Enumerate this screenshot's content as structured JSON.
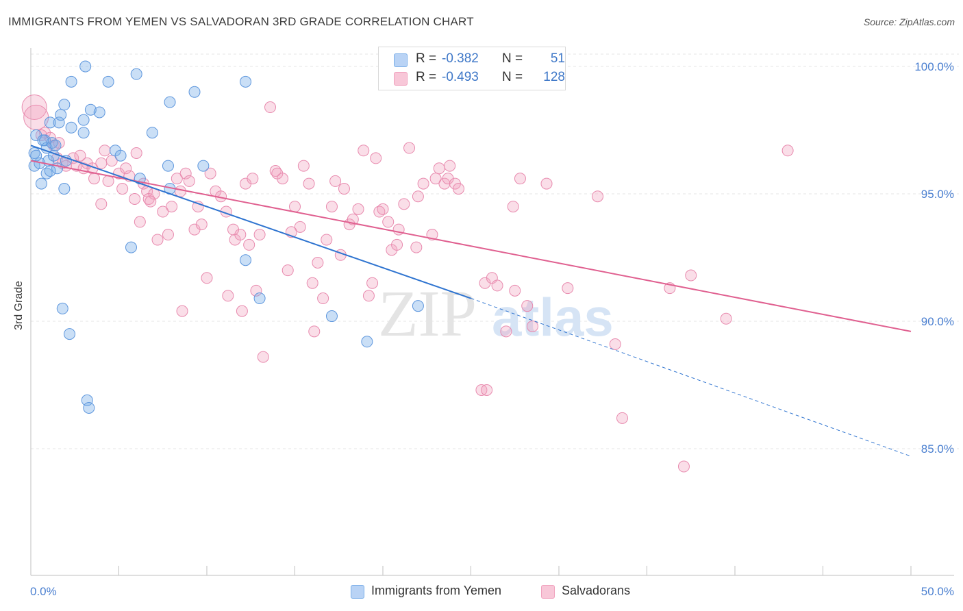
{
  "title": "IMMIGRANTS FROM YEMEN VS SALVADORAN 3RD GRADE CORRELATION CHART",
  "source": "Source: ZipAtlas.com",
  "watermark": {
    "zip": "ZIP",
    "atlas": "atlas"
  },
  "legend": {
    "series1": {
      "r_label": "R = ",
      "r_value": "-0.382",
      "n_label": "N = ",
      "n_value": "51"
    },
    "series2": {
      "r_label": "R = ",
      "r_value": "-0.493",
      "n_label": "N = ",
      "n_value": "128"
    }
  },
  "chart_data": {
    "type": "scatter",
    "title": "IMMIGRANTS FROM YEMEN VS SALVADORAN 3RD GRADE CORRELATION CHART",
    "xlabel": "",
    "ylabel": "3rd Grade",
    "xlim": [
      0,
      50
    ],
    "ylim": [
      80,
      100.5
    ],
    "x_tick_labels": [
      "0.0%",
      "50.0%"
    ],
    "y_ticks": [
      85,
      90,
      95,
      100
    ],
    "y_tick_labels": [
      "85.0%",
      "90.0%",
      "95.0%",
      "100.0%"
    ],
    "grid": true,
    "legend_position": "top-center",
    "colors": {
      "blue": "#7aaee8",
      "blue_line": "#2f74d0",
      "pink": "#f0a0bd",
      "pink_line": "#e06090",
      "tick": "#4a7fd0"
    },
    "series": [
      {
        "name": "Immigrants from Yemen",
        "color": "#7aaee8",
        "trend": {
          "x0": 0,
          "y0": 96.9,
          "x1": 25,
          "y1": 90.9,
          "dashed_to_x": 50,
          "dashed_to_y": 84.7
        },
        "points": [
          [
            0.3,
            97.3
          ],
          [
            0.2,
            96.6
          ],
          [
            0.2,
            96.1
          ],
          [
            0.5,
            96.2
          ],
          [
            0.6,
            95.4
          ],
          [
            0.8,
            97.1
          ],
          [
            0.9,
            96.8
          ],
          [
            1.0,
            96.3
          ],
          [
            0.9,
            95.8
          ],
          [
            1.1,
            95.9
          ],
          [
            1.2,
            97.0
          ],
          [
            1.1,
            97.8
          ],
          [
            1.3,
            96.5
          ],
          [
            1.4,
            96.9
          ],
          [
            1.6,
            97.8
          ],
          [
            1.7,
            98.1
          ],
          [
            1.9,
            98.5
          ],
          [
            1.9,
            95.2
          ],
          [
            2.3,
            97.6
          ],
          [
            2.3,
            99.4
          ],
          [
            3.0,
            97.9
          ],
          [
            3.0,
            97.4
          ],
          [
            3.1,
            100.0
          ],
          [
            3.4,
            98.3
          ],
          [
            3.9,
            98.2
          ],
          [
            4.4,
            99.4
          ],
          [
            4.8,
            96.7
          ],
          [
            5.1,
            96.5
          ],
          [
            5.7,
            92.9
          ],
          [
            6.0,
            99.7
          ],
          [
            6.2,
            95.6
          ],
          [
            6.9,
            97.4
          ],
          [
            7.8,
            96.1
          ],
          [
            7.9,
            98.6
          ],
          [
            7.9,
            95.2
          ],
          [
            9.3,
            99.0
          ],
          [
            9.8,
            96.1
          ],
          [
            12.2,
            99.4
          ],
          [
            12.2,
            92.4
          ],
          [
            13.0,
            90.9
          ],
          [
            17.1,
            90.2
          ],
          [
            19.1,
            89.2
          ],
          [
            22.0,
            90.6
          ],
          [
            1.8,
            90.5
          ],
          [
            2.2,
            89.5
          ],
          [
            3.2,
            86.9
          ],
          [
            3.3,
            86.6
          ],
          [
            0.3,
            96.5
          ],
          [
            0.7,
            97.1
          ],
          [
            1.5,
            96.0
          ],
          [
            2.0,
            96.3
          ]
        ]
      },
      {
        "name": "Salvadorans",
        "color": "#f0a0bd",
        "trend": {
          "x0": 0,
          "y0": 96.3,
          "x1": 50,
          "y1": 89.6
        },
        "points": [
          [
            0.2,
            98.4
          ],
          [
            0.3,
            98.0
          ],
          [
            0.8,
            97.4
          ],
          [
            1.1,
            97.2
          ],
          [
            1.3,
            96.9
          ],
          [
            1.5,
            96.4
          ],
          [
            1.8,
            96.2
          ],
          [
            2.0,
            96.1
          ],
          [
            2.4,
            96.4
          ],
          [
            2.6,
            96.1
          ],
          [
            3.0,
            96.0
          ],
          [
            3.2,
            96.2
          ],
          [
            3.5,
            96.0
          ],
          [
            3.6,
            95.6
          ],
          [
            4.0,
            96.2
          ],
          [
            4.0,
            94.6
          ],
          [
            4.2,
            96.7
          ],
          [
            4.4,
            95.5
          ],
          [
            4.6,
            96.3
          ],
          [
            5.0,
            95.8
          ],
          [
            5.2,
            95.2
          ],
          [
            5.6,
            95.7
          ],
          [
            5.9,
            94.8
          ],
          [
            6.0,
            96.6
          ],
          [
            6.2,
            93.9
          ],
          [
            6.4,
            95.4
          ],
          [
            6.6,
            95.1
          ],
          [
            6.7,
            94.8
          ],
          [
            7.0,
            95.0
          ],
          [
            7.2,
            93.2
          ],
          [
            7.5,
            94.3
          ],
          [
            7.8,
            93.4
          ],
          [
            8.0,
            94.5
          ],
          [
            8.3,
            95.6
          ],
          [
            8.5,
            95.1
          ],
          [
            8.6,
            90.4
          ],
          [
            8.8,
            95.8
          ],
          [
            9.3,
            93.6
          ],
          [
            9.5,
            94.5
          ],
          [
            9.7,
            93.8
          ],
          [
            10.0,
            91.7
          ],
          [
            10.2,
            95.8
          ],
          [
            10.5,
            95.1
          ],
          [
            10.8,
            94.9
          ],
          [
            11.1,
            94.3
          ],
          [
            11.2,
            91.0
          ],
          [
            11.6,
            93.2
          ],
          [
            11.9,
            93.4
          ],
          [
            12.0,
            90.4
          ],
          [
            12.2,
            95.4
          ],
          [
            12.4,
            93.0
          ],
          [
            12.6,
            95.6
          ],
          [
            12.8,
            91.2
          ],
          [
            13.0,
            93.4
          ],
          [
            13.2,
            88.6
          ],
          [
            13.6,
            98.4
          ],
          [
            13.9,
            95.9
          ],
          [
            14.0,
            95.8
          ],
          [
            14.3,
            95.6
          ],
          [
            14.6,
            92.0
          ],
          [
            15.0,
            94.5
          ],
          [
            15.3,
            93.7
          ],
          [
            15.5,
            96.1
          ],
          [
            15.8,
            95.4
          ],
          [
            16.0,
            91.5
          ],
          [
            16.1,
            89.6
          ],
          [
            16.3,
            92.3
          ],
          [
            16.6,
            90.9
          ],
          [
            16.8,
            93.2
          ],
          [
            17.1,
            94.5
          ],
          [
            17.3,
            95.5
          ],
          [
            17.8,
            95.2
          ],
          [
            18.1,
            93.8
          ],
          [
            18.3,
            94.0
          ],
          [
            18.6,
            94.4
          ],
          [
            18.9,
            96.7
          ],
          [
            19.2,
            91.0
          ],
          [
            19.4,
            91.5
          ],
          [
            19.6,
            96.4
          ],
          [
            19.8,
            94.3
          ],
          [
            20.0,
            94.4
          ],
          [
            20.3,
            93.9
          ],
          [
            20.5,
            92.8
          ],
          [
            20.8,
            93.0
          ],
          [
            21.2,
            94.6
          ],
          [
            21.5,
            96.8
          ],
          [
            21.9,
            92.9
          ],
          [
            22.0,
            94.9
          ],
          [
            22.3,
            95.4
          ],
          [
            22.8,
            93.4
          ],
          [
            23.0,
            95.6
          ],
          [
            23.2,
            96.0
          ],
          [
            23.5,
            95.4
          ],
          [
            23.7,
            95.6
          ],
          [
            23.8,
            96.1
          ],
          [
            24.1,
            95.4
          ],
          [
            24.3,
            95.2
          ],
          [
            25.6,
            87.3
          ],
          [
            25.8,
            91.5
          ],
          [
            25.9,
            87.3
          ],
          [
            26.2,
            91.7
          ],
          [
            26.5,
            91.4
          ],
          [
            27.0,
            89.6
          ],
          [
            27.4,
            94.5
          ],
          [
            27.5,
            91.2
          ],
          [
            27.8,
            95.6
          ],
          [
            28.2,
            90.6
          ],
          [
            28.5,
            89.8
          ],
          [
            29.3,
            95.4
          ],
          [
            30.5,
            91.3
          ],
          [
            32.2,
            94.9
          ],
          [
            33.2,
            89.1
          ],
          [
            33.6,
            86.2
          ],
          [
            36.3,
            91.3
          ],
          [
            37.1,
            84.3
          ],
          [
            37.5,
            91.8
          ],
          [
            39.5,
            90.1
          ],
          [
            43.0,
            96.7
          ],
          [
            0.6,
            97.3
          ],
          [
            1.6,
            97.0
          ],
          [
            2.8,
            96.5
          ],
          [
            5.4,
            96.0
          ],
          [
            6.8,
            94.7
          ],
          [
            9.0,
            95.5
          ],
          [
            11.5,
            93.6
          ],
          [
            14.8,
            93.5
          ],
          [
            17.6,
            92.6
          ],
          [
            20.9,
            93.6
          ]
        ]
      }
    ]
  },
  "bottom_legend": {
    "series1": "Immigrants from Yemen",
    "series2": "Salvadorans"
  }
}
